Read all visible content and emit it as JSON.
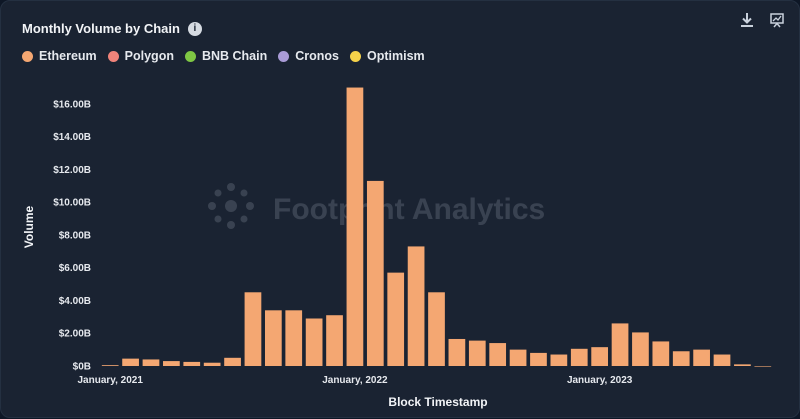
{
  "colors": {
    "background": "#1a2332",
    "ethereum": "#f4a772",
    "polygon": "#f0837a",
    "bnb_chain": "#7fc744",
    "cronos": "#a99bd6",
    "optimism": "#f5d24a"
  },
  "header": {
    "title": "Monthly Volume by Chain",
    "info_icon": "info-icon",
    "download_icon": "download-icon",
    "export_icon": "chart-export-icon"
  },
  "legend": [
    {
      "label": "Ethereum",
      "color": "#f4a772"
    },
    {
      "label": "Polygon",
      "color": "#f0837a"
    },
    {
      "label": "BNB Chain",
      "color": "#7fc744"
    },
    {
      "label": "Cronos",
      "color": "#a99bd6"
    },
    {
      "label": "Optimism",
      "color": "#f5d24a"
    }
  ],
  "watermark": "Footprint Analytics",
  "chart_data": {
    "type": "bar",
    "title": "Monthly Volume by Chain",
    "xlabel": "Block Timestamp",
    "ylabel": "Volume",
    "ylim": [
      0,
      17.5
    ],
    "y_unit": "$B",
    "y_ticks": [
      "$0B",
      "$2.00B",
      "$4.00B",
      "$6.00B",
      "$8.00B",
      "$10.00B",
      "$12.00B",
      "$14.00B",
      "$16.00B"
    ],
    "y_tick_values": [
      0,
      2,
      4,
      6,
      8,
      10,
      12,
      14,
      16
    ],
    "x_tick_labels": [
      {
        "label": "January, 2021",
        "index": 0
      },
      {
        "label": "January, 2022",
        "index": 12
      },
      {
        "label": "January, 2023",
        "index": 24
      }
    ],
    "grid": false,
    "legend_position": "top-left",
    "categories": [
      "2021-01",
      "2021-02",
      "2021-03",
      "2021-04",
      "2021-05",
      "2021-06",
      "2021-07",
      "2021-08",
      "2021-09",
      "2021-10",
      "2021-11",
      "2021-12",
      "2022-01",
      "2022-02",
      "2022-03",
      "2022-04",
      "2022-05",
      "2022-06",
      "2022-07",
      "2022-08",
      "2022-09",
      "2022-10",
      "2022-11",
      "2022-12",
      "2023-01",
      "2023-02",
      "2023-03",
      "2023-04",
      "2023-05",
      "2023-06",
      "2023-07",
      "2023-08",
      "2023-09"
    ],
    "series": [
      {
        "name": "Ethereum",
        "color": "#f4a772",
        "values": [
          0.05,
          0.45,
          0.4,
          0.3,
          0.25,
          0.2,
          0.5,
          4.5,
          3.4,
          3.4,
          2.9,
          3.1,
          17.0,
          11.3,
          5.7,
          7.3,
          4.5,
          1.65,
          1.55,
          1.4,
          1.0,
          0.8,
          0.7,
          1.05,
          1.15,
          2.6,
          2.05,
          1.5,
          0.9,
          1.0,
          0.7,
          0.1,
          0.0
        ]
      }
    ]
  }
}
